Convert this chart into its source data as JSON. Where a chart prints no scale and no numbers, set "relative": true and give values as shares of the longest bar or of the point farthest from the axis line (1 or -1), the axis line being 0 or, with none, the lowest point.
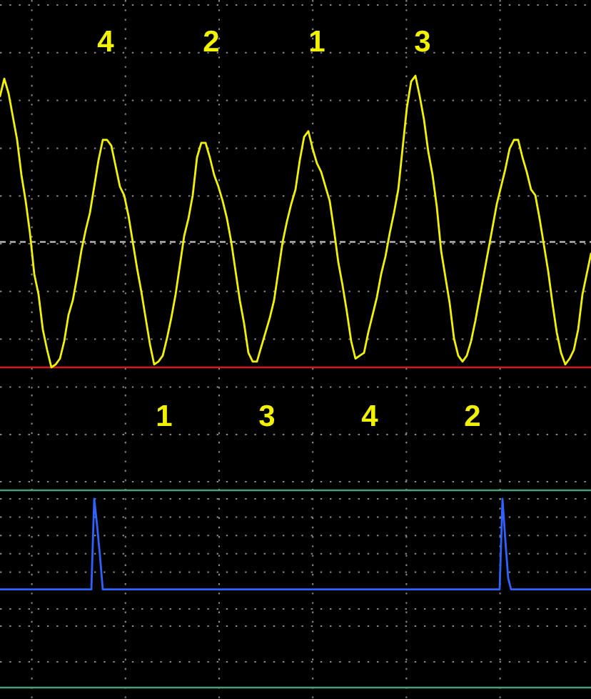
{
  "chart_data": [
    {
      "type": "line",
      "relative": true,
      "grid": true,
      "categories": [
        null,
        null,
        null,
        null,
        null,
        null,
        null,
        null,
        null,
        null,
        null,
        null,
        null,
        null,
        null,
        null,
        null,
        null,
        null,
        null,
        null,
        null,
        null,
        null,
        null,
        null,
        null,
        null,
        null,
        null,
        null,
        null,
        null,
        null,
        null,
        null,
        null,
        null,
        null,
        null,
        null,
        null,
        null,
        null,
        null,
        null,
        null,
        null,
        null,
        null,
        null,
        null,
        null,
        null,
        null,
        null,
        null,
        null,
        null,
        null,
        null,
        null,
        null,
        null,
        null,
        null,
        null,
        null,
        null,
        null,
        null,
        null,
        null,
        null,
        null,
        null,
        null,
        null,
        null,
        null,
        null,
        null,
        null,
        null,
        null,
        null,
        null,
        null,
        null,
        null,
        null,
        null,
        null,
        null,
        null,
        null,
        null,
        null,
        null,
        null,
        null,
        null,
        null,
        null,
        null,
        null,
        null,
        null,
        null,
        null,
        null,
        null,
        null,
        null,
        null,
        null,
        null,
        null,
        null,
        null,
        null,
        null,
        null,
        null,
        null,
        null,
        null,
        null,
        null,
        null,
        null,
        null,
        null,
        null,
        null,
        null,
        null,
        null,
        null
      ],
      "series": [
        {
          "color": "#f2f200",
          "values": [
            0.93,
            0.99,
            0.94,
            0.86,
            0.78,
            0.66,
            0.57,
            0.46,
            0.32,
            0.25,
            0.13,
            0.06,
            0,
            0.01,
            0.03,
            0.09,
            0.18,
            0.23,
            0.31,
            0.4,
            0.47,
            0.53,
            0.62,
            0.71,
            0.78,
            0.78,
            0.76,
            0.69,
            0.62,
            0.59,
            0.52,
            0.43,
            0.34,
            0.26,
            0.17,
            0.08,
            0.01,
            0.02,
            0.04,
            0.1,
            0.17,
            0.25,
            0.35,
            0.45,
            0.51,
            0.59,
            0.72,
            0.77,
            0.77,
            0.72,
            0.66,
            0.62,
            0.57,
            0.51,
            0.43,
            0.33,
            0.23,
            0.15,
            0.05,
            0.02,
            0.02,
            0.07,
            0.12,
            0.17,
            0.23,
            0.33,
            0.43,
            0.5,
            0.56,
            0.61,
            0.71,
            0.79,
            0.81,
            0.75,
            0.7,
            0.67,
            0.62,
            0.57,
            0.47,
            0.36,
            0.28,
            0.19,
            0.09,
            0.03,
            0.04,
            0.05,
            0.12,
            0.18,
            0.24,
            0.32,
            0.38,
            0.46,
            0.53,
            0.61,
            0.75,
            0.89,
            0.98,
            1,
            0.93,
            0.85,
            0.74,
            0.66,
            0.55,
            0.4,
            0.31,
            0.22,
            0.1,
            0.04,
            0.02,
            0.04,
            0.09,
            0.16,
            0.24,
            0.32,
            0.4,
            0.48,
            0.56,
            0.62,
            0.68,
            0.75,
            0.78,
            0.78,
            0.72,
            0.67,
            0.61,
            0.59,
            0.51,
            0.42,
            0.33,
            0.22,
            0.12,
            0.05,
            0.01,
            0.03,
            0.06,
            0.13,
            0.25,
            0.32,
            0.39
          ]
        }
      ],
      "ref_lines": [
        {
          "axis": "y",
          "value": 0,
          "color": "#d81818"
        },
        {
          "axis": "y",
          "value": 0.43,
          "color": "#b4b4b4",
          "line_style": "dashed"
        }
      ],
      "annotations": [
        "4",
        "2",
        "1",
        "3"
      ]
    },
    {
      "type": "line",
      "relative": true,
      "grid": true,
      "categories": [
        null,
        null,
        null,
        null,
        null,
        null,
        null,
        null,
        null,
        null,
        null,
        null,
        null,
        null,
        null,
        null,
        null,
        null,
        null,
        null,
        null,
        null,
        null,
        null,
        null,
        null,
        null,
        null,
        null,
        null,
        null,
        null,
        null,
        null,
        null,
        null,
        null,
        null,
        null,
        null,
        null,
        null,
        null,
        null,
        null,
        null,
        null,
        null,
        null,
        null,
        null,
        null,
        null,
        null,
        null,
        null,
        null,
        null,
        null,
        null,
        null,
        null,
        null,
        null,
        null,
        null,
        null,
        null,
        null,
        null,
        null,
        null,
        null,
        null,
        null,
        null,
        null,
        null,
        null,
        null,
        null,
        null,
        null,
        null,
        null,
        null,
        null,
        null,
        null,
        null,
        null,
        null,
        null,
        null,
        null,
        null,
        null,
        null,
        null,
        null,
        null,
        null,
        null,
        null,
        null,
        null,
        null,
        null,
        null,
        null,
        null,
        null,
        null,
        null,
        null,
        null,
        null,
        null,
        null,
        null,
        null,
        null,
        null,
        null,
        null,
        null,
        null,
        null,
        null,
        null,
        null,
        null,
        null,
        null,
        null,
        null,
        null,
        null,
        null,
        null,
        null,
        null,
        null,
        null,
        null,
        null,
        null,
        null,
        null,
        null,
        null,
        null,
        null,
        null,
        null,
        null,
        null,
        null,
        null,
        null,
        null,
        null,
        null,
        null,
        null,
        null,
        null,
        null,
        null,
        null,
        null,
        null,
        null,
        null,
        null,
        null,
        null,
        null,
        null,
        null,
        null,
        null,
        null,
        null,
        null,
        null,
        null,
        null,
        null,
        null,
        null,
        null,
        null,
        null,
        null,
        null,
        null,
        null,
        null,
        null,
        null,
        null,
        null,
        null,
        null,
        null,
        null,
        null
      ],
      "series": [
        {
          "color": "#2f62ff",
          "values": [
            0.52,
            0.52,
            0.52,
            0.52,
            0.52,
            0.52,
            0.52,
            0.52,
            0.52,
            0.52,
            0.52,
            0.52,
            0.52,
            0.52,
            0.52,
            0.52,
            0.52,
            0.52,
            0.52,
            0.52,
            0.52,
            0.52,
            0.52,
            0.52,
            0.52,
            0.52,
            0.52,
            0.52,
            0.52,
            0.52,
            0.52,
            0.52,
            0.52,
            1,
            0.86,
            0.7,
            0.52,
            0.52,
            0.52,
            0.52,
            0.52,
            0.52,
            0.52,
            0.52,
            0.52,
            0.52,
            0.52,
            0.52,
            0.52,
            0.52,
            0.52,
            0.52,
            0.52,
            0.52,
            0.52,
            0.52,
            0.52,
            0.52,
            0.52,
            0.52,
            0.52,
            0.52,
            0.52,
            0.52,
            0.52,
            0.52,
            0.52,
            0.52,
            0.52,
            0.52,
            0.52,
            0.52,
            0.52,
            0.52,
            0.52,
            0.52,
            0.52,
            0.52,
            0.52,
            0.52,
            0.52,
            0.52,
            0.52,
            0.52,
            0.52,
            0.52,
            0.52,
            0.52,
            0.52,
            0.52,
            0.52,
            0.52,
            0.52,
            0.52,
            0.52,
            0.52,
            0.52,
            0.52,
            0.52,
            0.52,
            0.52,
            0.52,
            0.52,
            0.52,
            0.52,
            0.52,
            0.52,
            0.52,
            0.52,
            0.52,
            0.52,
            0.52,
            0.52,
            0.52,
            0.52,
            0.52,
            0.52,
            0.52,
            0.52,
            0.52,
            0.52,
            0.52,
            0.52,
            0.52,
            0.52,
            0.52,
            0.52,
            0.52,
            0.52,
            0.52,
            0.52,
            0.52,
            0.52,
            0.52,
            0.52,
            0.52,
            0.52,
            0.52,
            0.52,
            0.52,
            0.52,
            0.52,
            0.52,
            0.52,
            0.52,
            0.52,
            0.52,
            0.52,
            0.52,
            0.52,
            0.52,
            0.52,
            0.52,
            0.52,
            0.52,
            0.52,
            0.52,
            0.52,
            0.52,
            0.52,
            0.52,
            0.52,
            0.52,
            0.52,
            0.52,
            0.52,
            0.52,
            0.52,
            0.52,
            0.52,
            0.52,
            0.52,
            0.52,
            0.52,
            0.52,
            0.52,
            1,
            0.78,
            0.58,
            0.52,
            0.52,
            0.52,
            0.52,
            0.52,
            0.52,
            0.52,
            0.52,
            0.52,
            0.52,
            0.52,
            0.52,
            0.52,
            0.52,
            0.52,
            0.52,
            0.52,
            0.52,
            0.52,
            0.52,
            0.52,
            0.52,
            0.52,
            0.52,
            0.52,
            0.52,
            0.52,
            0.52,
            0.52
          ]
        }
      ],
      "annotations": [
        "1",
        "3",
        "4",
        "2"
      ]
    }
  ]
}
